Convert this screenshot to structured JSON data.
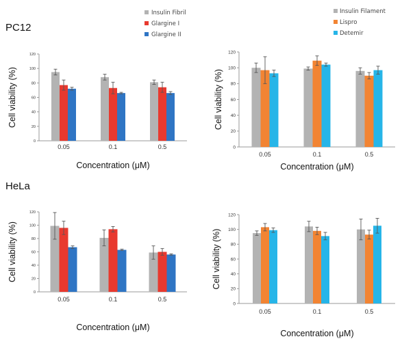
{
  "sections": [
    "PC12",
    "HeLa"
  ],
  "legends": [
    [
      {
        "label": "Insulin Fibril",
        "color": "#b3b3b3"
      },
      {
        "label": "Glargine I",
        "color": "#e8392f"
      },
      {
        "label": "Glargine II",
        "color": "#2f75c4"
      }
    ],
    [
      {
        "label": "Insulin Filament",
        "color": "#b3b3b3"
      },
      {
        "label": "Lispro",
        "color": "#f28433"
      },
      {
        "label": "Detemir",
        "color": "#26b5e8"
      }
    ]
  ],
  "chart_data": [
    {
      "type": "bar",
      "section": "PC12",
      "categories": [
        "0.05",
        "0.1",
        "0.5"
      ],
      "series": [
        {
          "name": "Insulin Fibril",
          "color": "#b3b3b3",
          "values": [
            95,
            88,
            81
          ],
          "errors": [
            4,
            4,
            3
          ]
        },
        {
          "name": "Glargine I",
          "color": "#e8392f",
          "values": [
            77,
            73,
            74
          ],
          "errors": [
            7,
            8,
            7
          ]
        },
        {
          "name": "Glargine II",
          "color": "#2f75c4",
          "values": [
            72,
            66,
            66
          ],
          "errors": [
            2,
            1,
            2
          ]
        }
      ],
      "xlabel": "Concentration (μM)",
      "ylabel": "Cell viability (%)",
      "ylim": [
        0,
        120
      ],
      "yticks": [
        0,
        20,
        40,
        60,
        80,
        100,
        120
      ]
    },
    {
      "type": "bar",
      "section": "PC12",
      "categories": [
        "0.05",
        "0.1",
        "0.5"
      ],
      "series": [
        {
          "name": "Insulin Filament",
          "color": "#b3b3b3",
          "values": [
            100,
            99,
            96
          ],
          "errors": [
            6,
            2,
            4
          ]
        },
        {
          "name": "Lispro",
          "color": "#f28433",
          "values": [
            97,
            109,
            90
          ],
          "errors": [
            17,
            6,
            4
          ]
        },
        {
          "name": "Detemir",
          "color": "#26b5e8",
          "values": [
            93,
            104,
            97
          ],
          "errors": [
            4,
            2,
            5
          ]
        }
      ],
      "xlabel": "Concentration (μM)",
      "ylabel": "Cell viability (%)",
      "ylim": [
        0,
        120
      ],
      "yticks": [
        0,
        20,
        40,
        60,
        80,
        100,
        120
      ]
    },
    {
      "type": "bar",
      "section": "HeLa",
      "categories": [
        "0.05",
        "0.1",
        "0.5"
      ],
      "series": [
        {
          "name": "Insulin Fibril",
          "color": "#b3b3b3",
          "values": [
            99,
            81,
            59
          ],
          "errors": [
            20,
            12,
            10
          ]
        },
        {
          "name": "Glargine I",
          "color": "#e8392f",
          "values": [
            96,
            94,
            60
          ],
          "errors": [
            10,
            4,
            5
          ]
        },
        {
          "name": "Glargine II",
          "color": "#2f75c4",
          "values": [
            67,
            63,
            56
          ],
          "errors": [
            2,
            1,
            1
          ]
        }
      ],
      "xlabel": "Concentration (μM)",
      "ylabel": "Cell viability (%)",
      "ylim": [
        0,
        120
      ],
      "yticks": [
        0,
        20,
        40,
        60,
        80,
        100,
        120
      ]
    },
    {
      "type": "bar",
      "section": "HeLa",
      "categories": [
        "0.05",
        "0.1",
        "0.5"
      ],
      "series": [
        {
          "name": "Insulin Filament",
          "color": "#b3b3b3",
          "values": [
            95,
            104,
            100
          ],
          "errors": [
            3,
            7,
            14
          ]
        },
        {
          "name": "Lispro",
          "color": "#f28433",
          "values": [
            103,
            98,
            93
          ],
          "errors": [
            5,
            5,
            6
          ]
        },
        {
          "name": "Detemir",
          "color": "#26b5e8",
          "values": [
            99,
            91,
            105
          ],
          "errors": [
            3,
            5,
            10
          ]
        }
      ],
      "xlabel": "Concentration (μM)",
      "ylabel": "Cell viability (%)",
      "ylim": [
        0,
        120
      ],
      "yticks": [
        0,
        20,
        40,
        60,
        80,
        100,
        120
      ]
    }
  ]
}
